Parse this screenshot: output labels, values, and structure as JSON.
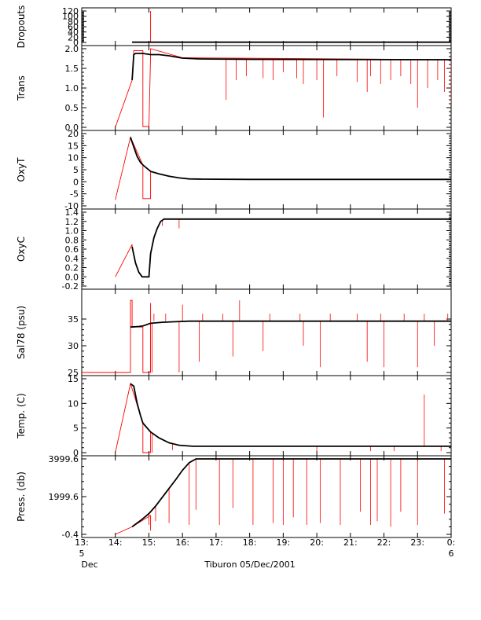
{
  "colors": {
    "raw_series": "#ff0000",
    "processed_series": "#000000",
    "axis": "#000000",
    "background": "#ffffff"
  },
  "figure": {
    "caption": "Tiburon 05/Dec/2001"
  },
  "x_axis": {
    "range_hours": [
      13,
      0
    ],
    "ticks": [
      {
        "value": 13,
        "label": "13:",
        "sub": "5",
        "sub2": "Dec"
      },
      {
        "value": 14,
        "label": "14:",
        "sub": "",
        "sub2": ""
      },
      {
        "value": 15,
        "label": "15:",
        "sub": "",
        "sub2": ""
      },
      {
        "value": 16,
        "label": "16:",
        "sub": "",
        "sub2": ""
      },
      {
        "value": 17,
        "label": "17:",
        "sub": "",
        "sub2": ""
      },
      {
        "value": 18,
        "label": "18:",
        "sub": "",
        "sub2": ""
      },
      {
        "value": 19,
        "label": "19:",
        "sub": "",
        "sub2": ""
      },
      {
        "value": 20,
        "label": "20:",
        "sub": "",
        "sub2": ""
      },
      {
        "value": 21,
        "label": "21:",
        "sub": "",
        "sub2": ""
      },
      {
        "value": 22,
        "label": "22:",
        "sub": "",
        "sub2": ""
      },
      {
        "value": 23,
        "label": "23:",
        "sub": "",
        "sub2": ""
      },
      {
        "value": 24,
        "label": "0:",
        "sub": "6",
        "sub2": ""
      }
    ]
  },
  "chart_data": [
    {
      "type": "line",
      "ylabel": "Dropouts",
      "ylim": [
        0,
        120
      ],
      "yticks": [
        0,
        20,
        40,
        60,
        80,
        100,
        120
      ],
      "yticklabels": [
        "0",
        "20",
        "40",
        "60",
        "80",
        "100",
        "120"
      ],
      "baseline": 1,
      "series": [
        {
          "color": "#ff0000",
          "x": [
            14.5,
            14.5,
            14.5,
            15.0,
            15.05,
            15.05,
            15.05,
            24.0
          ],
          "y": [
            1,
            1,
            1,
            1,
            1,
            120,
            1,
            1
          ]
        },
        {
          "color": "#000000",
          "x": [
            14.5,
            24.0
          ],
          "y": [
            1,
            1
          ]
        }
      ]
    },
    {
      "type": "line",
      "ylabel": "Trans",
      "ylim": [
        0.0,
        2.0
      ],
      "yticks": [
        0.0,
        0.5,
        1.0,
        1.5,
        2.0
      ],
      "yticklabels": [
        "0.0",
        "0.5",
        "1.0",
        "1.5",
        "2.0"
      ],
      "series": [
        {
          "color": "#ff0000",
          "x": [
            14.0,
            14.5,
            14.55,
            14.82,
            14.82,
            15.0,
            15.05,
            15.05,
            16.0,
            24.0
          ],
          "y": [
            0.0,
            1.2,
            1.95,
            1.95,
            0.02,
            0.02,
            1.85,
            2.0,
            1.77,
            1.72
          ]
        },
        {
          "color": "#000000",
          "x": [
            14.5,
            14.55,
            14.6,
            14.82,
            15.05,
            15.3,
            15.6,
            16.0,
            16.5,
            18.0,
            24.0
          ],
          "y": [
            1.2,
            1.85,
            1.88,
            1.88,
            1.85,
            1.85,
            1.82,
            1.76,
            1.74,
            1.73,
            1.72
          ]
        }
      ],
      "spikes": [
        {
          "x": 17.3,
          "low": 0.7
        },
        {
          "x": 17.6,
          "low": 1.2
        },
        {
          "x": 17.9,
          "low": 1.3
        },
        {
          "x": 18.4,
          "low": 1.25
        },
        {
          "x": 18.7,
          "low": 1.2
        },
        {
          "x": 19.0,
          "low": 1.4
        },
        {
          "x": 19.4,
          "low": 1.25
        },
        {
          "x": 19.6,
          "low": 1.1
        },
        {
          "x": 20.0,
          "low": 1.2
        },
        {
          "x": 20.2,
          "low": 0.25
        },
        {
          "x": 20.6,
          "low": 1.3
        },
        {
          "x": 21.2,
          "low": 1.15
        },
        {
          "x": 21.5,
          "low": 0.9
        },
        {
          "x": 21.6,
          "low": 1.3
        },
        {
          "x": 21.9,
          "low": 1.1
        },
        {
          "x": 22.2,
          "low": 1.2
        },
        {
          "x": 22.5,
          "low": 1.3
        },
        {
          "x": 22.8,
          "low": 1.1
        },
        {
          "x": 23.0,
          "low": 0.5
        },
        {
          "x": 23.3,
          "low": 1.0
        },
        {
          "x": 23.6,
          "low": 1.2
        },
        {
          "x": 23.8,
          "low": 0.9
        },
        {
          "x": 24.0,
          "low": 0.6
        }
      ]
    },
    {
      "type": "line",
      "ylabel": "OxyT",
      "ylim": [
        -10,
        20
      ],
      "yticks": [
        -10,
        -5,
        0,
        5,
        10,
        15,
        20
      ],
      "yticklabels": [
        "-10",
        "-5",
        "0",
        "5",
        "10",
        "15",
        "20"
      ],
      "series": [
        {
          "color": "#ff0000",
          "x": [
            14.0,
            14.45,
            14.82,
            14.82,
            15.05,
            15.05,
            15.1
          ],
          "y": [
            -7.5,
            18.5,
            7,
            -7,
            -7,
            4,
            4
          ]
        },
        {
          "color": "#000000",
          "x": [
            14.45,
            14.55,
            14.65,
            14.75,
            14.82,
            15.05,
            15.3,
            15.6,
            15.9,
            16.2,
            16.6,
            18.0,
            24.0
          ],
          "y": [
            18.5,
            14.5,
            10.5,
            8,
            7,
            4.3,
            3.3,
            2.3,
            1.6,
            1.2,
            1.1,
            1.0,
            1.0
          ]
        }
      ],
      "spikes": []
    },
    {
      "type": "line",
      "ylabel": "OxyC",
      "ylim": [
        -0.2,
        1.4
      ],
      "yticks": [
        -0.2,
        0.0,
        0.2,
        0.4,
        0.6,
        0.8,
        1.0,
        1.2,
        1.4
      ],
      "yticklabels": [
        "-0.2",
        "0.0",
        "0.2",
        "0.4",
        "0.6",
        "0.8",
        "1.0",
        "1.2",
        "1.4"
      ],
      "series": [
        {
          "color": "#ff0000",
          "x": [
            14.0,
            14.5,
            14.5
          ],
          "y": [
            0.0,
            0.7,
            0.65
          ]
        },
        {
          "color": "#000000",
          "x": [
            14.5,
            14.6,
            14.7,
            14.8,
            15.0,
            15.05,
            15.15,
            15.25,
            15.35,
            15.45,
            16.0,
            24.0
          ],
          "y": [
            0.65,
            0.3,
            0.1,
            0.0,
            0.0,
            0.5,
            0.85,
            1.05,
            1.2,
            1.25,
            1.25,
            1.25
          ]
        }
      ],
      "spikes": [
        {
          "x": 15.05,
          "low": 0.4
        },
        {
          "x": 15.4,
          "low": 1.1
        },
        {
          "x": 15.9,
          "low": 1.05
        }
      ]
    },
    {
      "type": "line",
      "ylabel": "Sal78 (psu)",
      "ylim": [
        25,
        40
      ],
      "yticks": [
        25,
        30,
        35
      ],
      "yticklabels": [
        "25",
        "30",
        "35"
      ],
      "series": [
        {
          "color": "#ff0000",
          "x": [
            13.0,
            14.45,
            14.45,
            14.5,
            14.5,
            14.82,
            14.82,
            15.05,
            15.05
          ],
          "y": [
            25,
            25,
            38.5,
            38.5,
            33.5,
            33.5,
            25,
            25,
            38
          ]
        },
        {
          "color": "#000000",
          "x": [
            14.45,
            14.7,
            14.82,
            15.05,
            15.4,
            15.8,
            16.2,
            17.0,
            24.0
          ],
          "y": [
            33.5,
            33.6,
            33.7,
            34.2,
            34.4,
            34.5,
            34.6,
            34.6,
            34.6
          ]
        }
      ],
      "spikes": [
        {
          "x": 15.05,
          "low": 25
        },
        {
          "x": 15.1,
          "low": 25
        },
        {
          "x": 15.9,
          "low": 25
        },
        {
          "x": 16.5,
          "low": 27
        },
        {
          "x": 17.5,
          "low": 28
        },
        {
          "x": 18.4,
          "low": 29
        },
        {
          "x": 19.6,
          "low": 30
        },
        {
          "x": 20.1,
          "low": 26
        },
        {
          "x": 21.5,
          "low": 27
        },
        {
          "x": 22.0,
          "low": 26
        },
        {
          "x": 23.0,
          "low": 26
        },
        {
          "x": 23.5,
          "low": 30
        }
      ],
      "up_spikes": [
        {
          "x": 15.15,
          "high": 36
        },
        {
          "x": 15.5,
          "high": 36
        },
        {
          "x": 16.0,
          "high": 37.7
        },
        {
          "x": 16.6,
          "high": 36
        },
        {
          "x": 17.2,
          "high": 36
        },
        {
          "x": 17.7,
          "high": 38.5
        },
        {
          "x": 18.6,
          "high": 36
        },
        {
          "x": 19.5,
          "high": 36
        },
        {
          "x": 20.4,
          "high": 36
        },
        {
          "x": 21.2,
          "high": 36
        },
        {
          "x": 21.9,
          "high": 36
        },
        {
          "x": 22.6,
          "high": 36
        },
        {
          "x": 23.2,
          "high": 36
        },
        {
          "x": 23.9,
          "high": 36
        }
      ]
    },
    {
      "type": "line",
      "ylabel": "Temp. (C)",
      "ylim": [
        0,
        15
      ],
      "yticks": [
        0,
        5,
        10,
        15
      ],
      "yticklabels": [
        "0",
        "5",
        "10",
        "15"
      ],
      "series": [
        {
          "color": "#ff0000",
          "x": [
            14.0,
            14.45,
            14.82,
            14.82,
            15.05,
            15.05
          ],
          "y": [
            0.0,
            14.0,
            6.0,
            0.0,
            0.0,
            4.2
          ]
        },
        {
          "color": "#000000",
          "x": [
            14.45,
            14.55,
            14.65,
            14.75,
            14.82,
            15.05,
            15.3,
            15.6,
            15.9,
            16.3,
            17.0,
            24.0
          ],
          "y": [
            14.0,
            13.5,
            10.0,
            7.5,
            6.0,
            4.2,
            3.0,
            2.0,
            1.5,
            1.3,
            1.3,
            1.3
          ]
        }
      ],
      "spikes": [
        {
          "x": 15.1,
          "low": 0.0
        },
        {
          "x": 15.7,
          "low": 0.5
        },
        {
          "x": 20.0,
          "low": 0.3
        },
        {
          "x": 21.6,
          "low": 0.3
        },
        {
          "x": 22.3,
          "low": 0.3
        },
        {
          "x": 23.7,
          "low": 0.3
        }
      ],
      "up_spikes": [
        {
          "x": 23.2,
          "high": 11.8
        }
      ]
    },
    {
      "type": "line",
      "ylabel": "Press. (db)",
      "ylim": [
        -0.4,
        3999.6
      ],
      "yticks": [
        -0.4,
        1999.6,
        3999.6
      ],
      "yticklabels": [
        "-0.4",
        "1999.6",
        "3999.6"
      ],
      "series": [
        {
          "color": "#ff0000",
          "x": [
            14.0,
            14.5,
            15.05,
            15.05,
            15.05
          ],
          "y": [
            -0.4,
            400,
            1000,
            200,
            1000
          ]
        },
        {
          "color": "#000000",
          "x": [
            14.5,
            14.8,
            15.0,
            15.2,
            15.5,
            15.8,
            16.0,
            16.2,
            16.4,
            18.0,
            24.0
          ],
          "y": [
            400,
            800,
            1100,
            1500,
            2200,
            2900,
            3400,
            3800,
            3999.6,
            3999.6,
            3999.6
          ]
        }
      ],
      "spikes": [
        {
          "x": 15.0,
          "low": 500
        },
        {
          "x": 15.2,
          "low": 700
        },
        {
          "x": 15.6,
          "low": 600
        },
        {
          "x": 16.2,
          "low": 500
        },
        {
          "x": 16.4,
          "low": 1300
        },
        {
          "x": 17.1,
          "low": 500
        },
        {
          "x": 17.5,
          "low": 1400
        },
        {
          "x": 18.1,
          "low": 500
        },
        {
          "x": 18.7,
          "low": 600
        },
        {
          "x": 19.0,
          "low": 500
        },
        {
          "x": 19.3,
          "low": 900
        },
        {
          "x": 19.7,
          "low": 500
        },
        {
          "x": 20.1,
          "low": 600
        },
        {
          "x": 20.7,
          "low": 500
        },
        {
          "x": 21.3,
          "low": 1200
        },
        {
          "x": 21.6,
          "low": 500
        },
        {
          "x": 21.8,
          "low": 700
        },
        {
          "x": 22.2,
          "low": 400
        },
        {
          "x": 22.5,
          "low": 1200
        },
        {
          "x": 23.0,
          "low": 500
        },
        {
          "x": 23.8,
          "low": 1100
        }
      ]
    }
  ]
}
